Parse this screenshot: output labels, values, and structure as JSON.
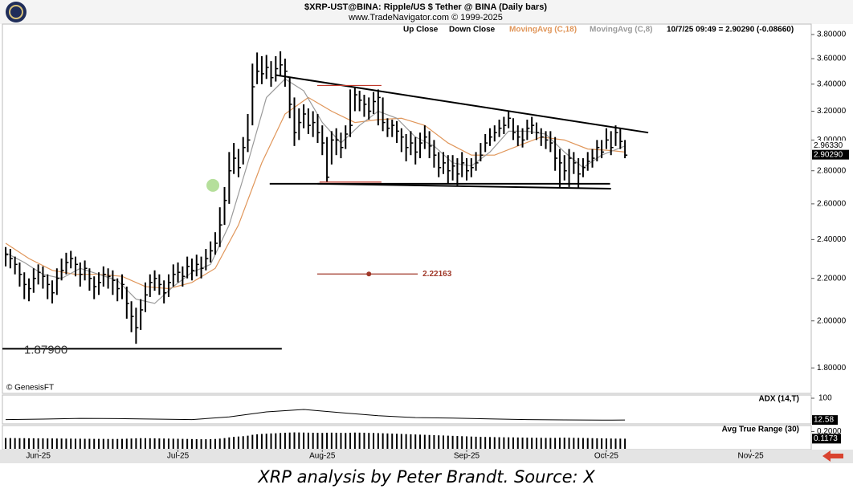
{
  "chart_data": [
    {
      "type": "ohlc",
      "title": "$XRP-UST@BINA:  Ripple/US $ Tether @ BINA  (Daily bars)",
      "subtitle": "www.TradeNavigator.com © 1999-2025",
      "quote": "10/7/25 09:49 = 2.90290 (-0.08660)",
      "watermark": "© GenesisFT",
      "caption": "XRP analysis by Peter Brandt. Source: X",
      "log_scale": true,
      "grid": false,
      "bar_legend": [
        {
          "name": "Up Close",
          "color": "#000000"
        },
        {
          "name": "Down Close",
          "color": "#000000"
        }
      ],
      "xlim": [
        -0.7,
        173
      ],
      "xticks": [
        {
          "value": 7,
          "label": "Jun-25"
        },
        {
          "value": 37,
          "label": "Jul-25"
        },
        {
          "value": 68,
          "label": "Aug-25"
        },
        {
          "value": 99,
          "label": "Sep-25"
        },
        {
          "value": 129,
          "label": "Oct-25"
        },
        {
          "value": 160,
          "label": "Nov-25"
        }
      ],
      "ylim": [
        1.7,
        3.89
      ],
      "yticks": [
        {
          "value": 3.8,
          "label": "3.80000"
        },
        {
          "value": 3.6,
          "label": "3.60000"
        },
        {
          "value": 3.4,
          "label": "3.40000"
        },
        {
          "value": 3.2,
          "label": "3.20000"
        },
        {
          "value": 3.0,
          "label": "3.00000"
        },
        {
          "value": 2.8,
          "label": "2.80000"
        },
        {
          "value": 2.6,
          "label": "2.60000"
        },
        {
          "value": 2.4,
          "label": "2.40000"
        },
        {
          "value": 2.2,
          "label": "2.20000"
        },
        {
          "value": 2.0,
          "label": "2.00000"
        },
        {
          "value": 1.8,
          "label": "1.80000"
        }
      ],
      "price_labels": [
        {
          "value": 2.9633,
          "label": "2.96330"
        },
        {
          "value": 2.9029,
          "label": "2.90290"
        }
      ],
      "high": [
        2.36,
        2.35,
        2.31,
        2.28,
        2.23,
        2.2,
        2.25,
        2.27,
        2.26,
        2.22,
        2.19,
        2.25,
        2.3,
        2.33,
        2.34,
        2.31,
        2.28,
        2.29,
        2.25,
        2.21,
        2.23,
        2.26,
        2.25,
        2.24,
        2.2,
        2.22,
        2.16,
        2.09,
        2.06,
        2.1,
        2.18,
        2.22,
        2.24,
        2.22,
        2.19,
        2.22,
        2.27,
        2.28,
        2.26,
        2.31,
        2.3,
        2.32,
        2.31,
        2.35,
        2.39,
        2.44,
        2.58,
        2.7,
        2.92,
        2.98,
        2.94,
        3.02,
        3.18,
        3.56,
        3.65,
        3.62,
        3.63,
        3.58,
        3.62,
        3.66,
        3.6,
        3.45,
        3.3,
        3.22,
        3.25,
        3.22,
        3.2,
        3.18,
        3.1,
        3.02,
        3.06,
        3.08,
        3.05,
        3.1,
        3.36,
        3.38,
        3.35,
        3.32,
        3.3,
        3.34,
        3.36,
        3.3,
        3.15,
        3.14,
        3.13,
        3.08,
        3.04,
        3.06,
        3.02,
        3.05,
        3.1,
        3.06,
        3.0,
        2.92,
        2.92,
        2.9,
        2.9,
        2.88,
        2.92,
        2.88,
        2.88,
        2.92,
        2.98,
        3.04,
        3.08,
        3.1,
        3.14,
        3.16,
        3.2,
        3.15,
        3.1,
        3.08,
        3.14,
        3.16,
        3.12,
        3.08,
        3.06,
        3.06,
        3.02,
        2.94,
        2.9,
        2.94,
        2.92,
        2.88,
        2.88,
        2.92,
        2.94,
        3.0,
        3.0,
        3.08,
        3.06,
        3.1,
        3.08,
        3.0
      ],
      "low": [
        2.26,
        2.25,
        2.22,
        2.16,
        2.1,
        2.09,
        2.13,
        2.17,
        2.15,
        2.1,
        2.08,
        2.12,
        2.19,
        2.22,
        2.25,
        2.21,
        2.16,
        2.19,
        2.14,
        2.1,
        2.12,
        2.16,
        2.15,
        2.12,
        2.09,
        2.1,
        2.01,
        1.95,
        1.9,
        1.96,
        2.04,
        2.11,
        2.14,
        2.12,
        2.08,
        2.11,
        2.16,
        2.18,
        2.16,
        2.2,
        2.19,
        2.21,
        2.2,
        2.24,
        2.28,
        2.32,
        2.36,
        2.48,
        2.6,
        2.78,
        2.76,
        2.84,
        2.92,
        3.1,
        3.4,
        3.4,
        3.44,
        3.38,
        3.42,
        3.46,
        3.38,
        3.15,
        2.96,
        3.0,
        3.08,
        3.04,
        3.02,
        2.98,
        2.9,
        2.73,
        2.84,
        2.9,
        2.88,
        2.94,
        3.02,
        3.2,
        3.2,
        3.16,
        3.14,
        3.18,
        3.1,
        3.06,
        3.02,
        3.02,
        2.98,
        2.92,
        2.86,
        2.9,
        2.84,
        2.88,
        2.94,
        2.88,
        2.82,
        2.76,
        2.78,
        2.72,
        2.74,
        2.71,
        2.76,
        2.74,
        2.76,
        2.8,
        2.86,
        2.92,
        2.96,
        2.99,
        3.02,
        3.04,
        3.08,
        3.0,
        2.96,
        2.95,
        3.0,
        3.04,
        3.0,
        2.96,
        2.94,
        2.92,
        2.8,
        2.7,
        2.74,
        2.7,
        2.78,
        2.69,
        2.76,
        2.8,
        2.82,
        2.86,
        2.88,
        2.94,
        2.9,
        2.96,
        2.94,
        2.88
      ],
      "close": [
        2.32,
        2.3,
        2.27,
        2.22,
        2.17,
        2.15,
        2.2,
        2.23,
        2.21,
        2.17,
        2.13,
        2.2,
        2.24,
        2.28,
        2.3,
        2.27,
        2.22,
        2.25,
        2.2,
        2.16,
        2.18,
        2.22,
        2.21,
        2.19,
        2.15,
        2.17,
        2.08,
        2.02,
        1.97,
        2.05,
        2.12,
        2.18,
        2.2,
        2.17,
        2.13,
        2.18,
        2.22,
        2.23,
        2.21,
        2.26,
        2.24,
        2.27,
        2.25,
        2.3,
        2.34,
        2.38,
        2.48,
        2.62,
        2.8,
        2.88,
        2.82,
        2.95,
        3.0,
        3.38,
        3.5,
        3.48,
        3.53,
        3.45,
        3.52,
        3.55,
        3.5,
        3.25,
        3.05,
        3.12,
        3.18,
        3.1,
        3.12,
        3.05,
        2.98,
        2.76,
        3.0,
        3.0,
        2.95,
        3.04,
        3.1,
        3.32,
        3.28,
        3.25,
        3.2,
        3.27,
        3.3,
        3.12,
        3.08,
        3.1,
        3.06,
        3.02,
        2.95,
        2.98,
        2.92,
        2.98,
        3.02,
        2.96,
        2.9,
        2.82,
        2.85,
        2.8,
        2.83,
        2.78,
        2.85,
        2.8,
        2.82,
        2.85,
        2.9,
        2.98,
        3.02,
        3.05,
        3.08,
        3.1,
        3.15,
        3.05,
        3.02,
        3.0,
        3.08,
        3.1,
        3.05,
        3.02,
        3.0,
        2.98,
        2.88,
        2.85,
        2.8,
        2.88,
        2.85,
        2.78,
        2.82,
        2.86,
        2.88,
        2.95,
        2.92,
        3.0,
        2.95,
        3.05,
        2.99,
        2.9
      ],
      "series": [
        {
          "name": "MovingAvg (C,18)",
          "color": "#e0965a",
          "x": [
            0,
            5,
            10,
            15,
            20,
            25,
            30,
            35,
            40,
            45,
            50,
            55,
            60,
            65,
            70,
            75,
            80,
            85,
            90,
            95,
            100,
            105,
            110,
            115,
            120,
            125,
            130,
            133
          ],
          "values": [
            2.38,
            2.3,
            2.24,
            2.22,
            2.22,
            2.21,
            2.16,
            2.15,
            2.18,
            2.25,
            2.48,
            2.85,
            3.18,
            3.3,
            3.2,
            3.12,
            3.14,
            3.15,
            3.1,
            2.98,
            2.9,
            2.9,
            2.96,
            3.02,
            3.0,
            2.94,
            2.93,
            2.92
          ]
        },
        {
          "name": "MovingAvg (C,8)",
          "color": "#9a9a9a",
          "x": [
            0,
            4,
            8,
            12,
            16,
            20,
            24,
            28,
            32,
            36,
            40,
            44,
            48,
            52,
            56,
            60,
            64,
            68,
            72,
            76,
            80,
            84,
            88,
            92,
            96,
            100,
            104,
            108,
            112,
            116,
            120,
            124,
            128,
            133
          ],
          "values": [
            2.33,
            2.28,
            2.22,
            2.2,
            2.25,
            2.22,
            2.19,
            2.1,
            2.08,
            2.16,
            2.23,
            2.27,
            2.48,
            2.85,
            3.3,
            3.44,
            3.35,
            3.12,
            2.98,
            3.1,
            3.2,
            3.15,
            3.02,
            2.96,
            2.85,
            2.83,
            2.92,
            3.06,
            3.06,
            3.04,
            2.92,
            2.82,
            2.9,
            2.96
          ]
        }
      ],
      "lines": [
        {
          "x": [
            58,
            138
          ],
          "y": [
            3.47,
            3.05
          ],
          "color": "#000000"
        },
        {
          "x": [
            56.7,
            129.8
          ],
          "y": [
            2.72,
            2.72
          ],
          "color": "#000000"
        },
        {
          "x": [
            67,
            130
          ],
          "y": [
            2.72,
            2.69
          ],
          "color": "#000000"
        },
        {
          "x": [
            66.9,
            80.7
          ],
          "y": [
            3.39,
            3.39
          ],
          "color": "#c0392b"
        },
        {
          "x": [
            67.4,
            80.7
          ],
          "y": [
            2.73,
            2.73
          ],
          "color": "#c0392b"
        }
      ],
      "level_line": {
        "value": 1.879,
        "label": "1.87900",
        "x": [
          -0.7,
          59.3
        ],
        "color": "#000000"
      },
      "level_marker": {
        "value": 2.22163,
        "label": "2.22163",
        "x": [
          66.9,
          88.5
        ],
        "dot_x": 78,
        "color": "#a0392a"
      },
      "markers": [
        {
          "x": 44.5,
          "y": 2.71,
          "color": "#a8d98a"
        }
      ]
    },
    {
      "type": "line",
      "title": "ADX (14,T)",
      "color": "#000000",
      "ylim": [
        0,
        100
      ],
      "yticks": [
        100
      ],
      "current": {
        "value": 12.58,
        "label": "12.58"
      },
      "x": [
        0,
        8,
        16,
        24,
        32,
        40,
        48,
        56,
        64,
        72,
        80,
        88,
        96,
        104,
        112,
        120,
        128,
        133
      ],
      "values": [
        14,
        16,
        19,
        18,
        16,
        14,
        25,
        45,
        55,
        42,
        30,
        22,
        20,
        17,
        14,
        13,
        12,
        12.58
      ]
    },
    {
      "type": "bar",
      "title": "Avg True Range (30)",
      "color": "#000000",
      "ylim": [
        0,
        0.26
      ],
      "yticks": [
        {
          "value": 0.2,
          "label": "0.2000"
        }
      ],
      "current": {
        "value": 0.1173,
        "label": "0.1173"
      },
      "values": [
        0.125,
        0.124,
        0.124,
        0.123,
        0.123,
        0.122,
        0.122,
        0.121,
        0.121,
        0.12,
        0.12,
        0.119,
        0.119,
        0.118,
        0.118,
        0.117,
        0.117,
        0.116,
        0.116,
        0.115,
        0.115,
        0.115,
        0.114,
        0.114,
        0.114,
        0.115,
        0.117,
        0.119,
        0.122,
        0.123,
        0.123,
        0.122,
        0.121,
        0.12,
        0.119,
        0.118,
        0.117,
        0.116,
        0.115,
        0.114,
        0.113,
        0.112,
        0.111,
        0.111,
        0.112,
        0.114,
        0.118,
        0.124,
        0.132,
        0.138,
        0.142,
        0.146,
        0.152,
        0.162,
        0.168,
        0.172,
        0.175,
        0.178,
        0.18,
        0.183,
        0.186,
        0.188,
        0.19,
        0.189,
        0.188,
        0.187,
        0.186,
        0.185,
        0.184,
        0.186,
        0.187,
        0.186,
        0.185,
        0.184,
        0.186,
        0.188,
        0.187,
        0.186,
        0.184,
        0.183,
        0.182,
        0.18,
        0.178,
        0.176,
        0.174,
        0.172,
        0.17,
        0.168,
        0.166,
        0.164,
        0.162,
        0.16,
        0.158,
        0.156,
        0.154,
        0.152,
        0.15,
        0.148,
        0.146,
        0.144,
        0.142,
        0.14,
        0.138,
        0.137,
        0.136,
        0.135,
        0.134,
        0.133,
        0.133,
        0.132,
        0.131,
        0.13,
        0.129,
        0.128,
        0.127,
        0.127,
        0.126,
        0.126,
        0.126,
        0.128,
        0.129,
        0.128,
        0.127,
        0.126,
        0.125,
        0.124,
        0.123,
        0.122,
        0.121,
        0.12,
        0.119,
        0.118,
        0.118,
        0.1173
      ]
    }
  ]
}
